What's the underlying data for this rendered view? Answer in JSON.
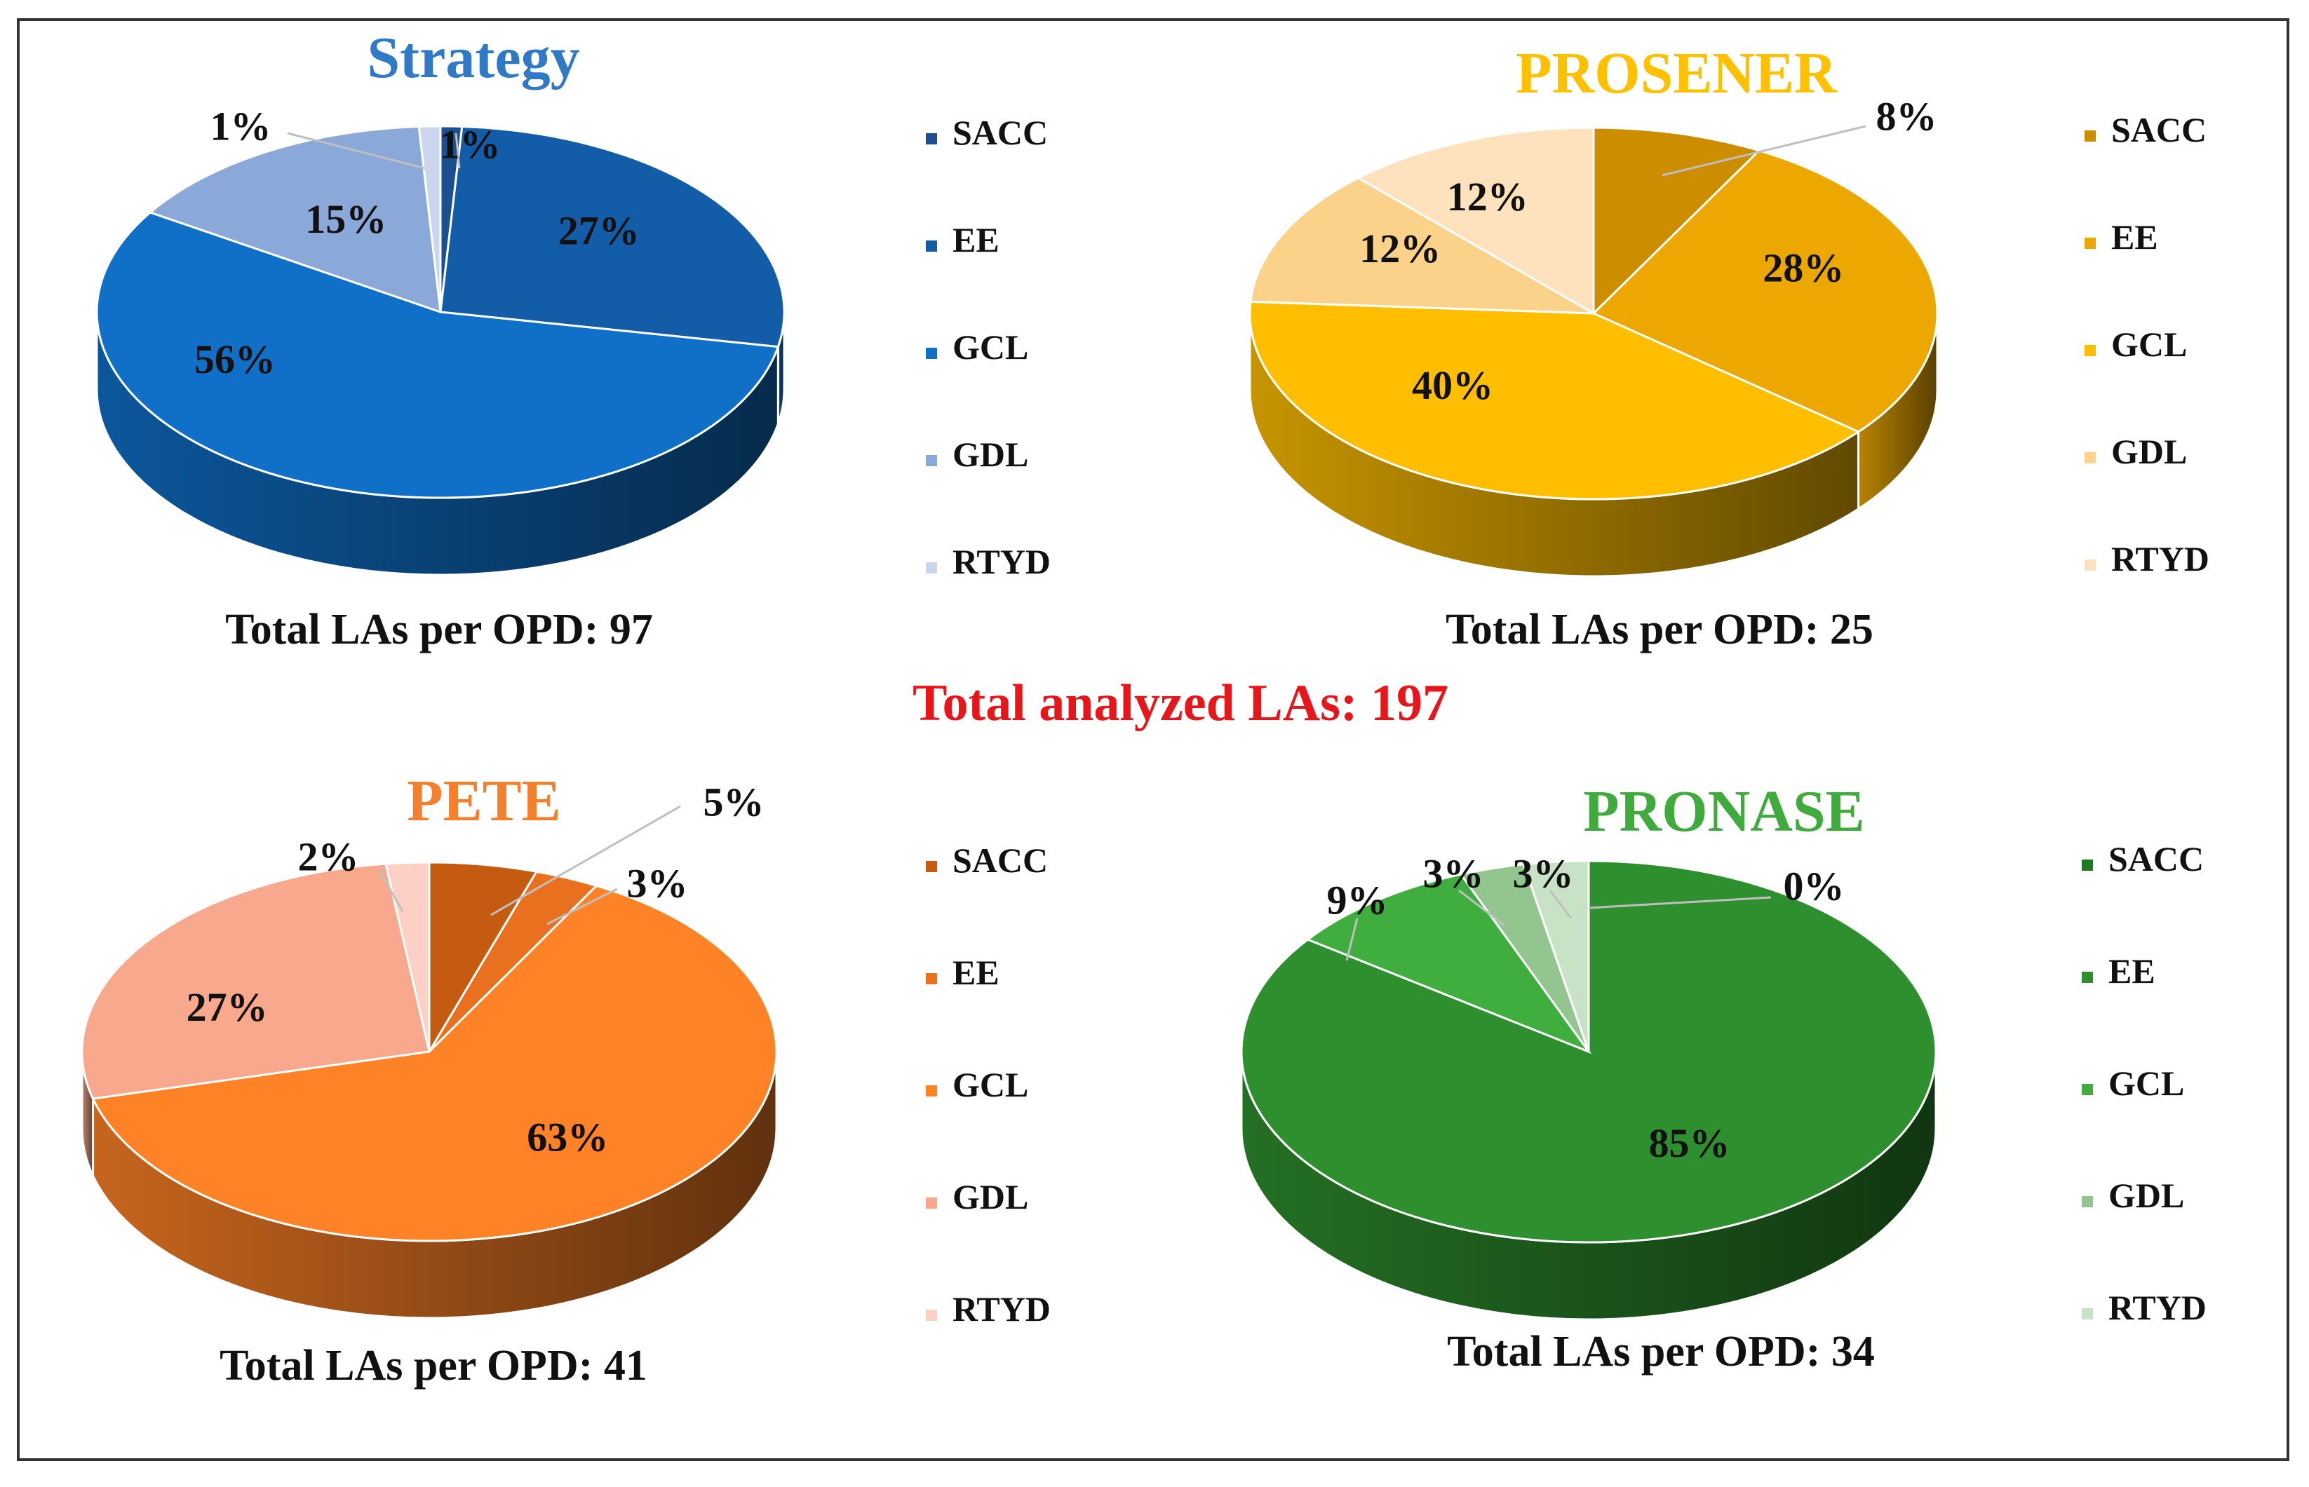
{
  "figure": {
    "total_label": "Total analyzed LAs: 197",
    "total_color": "#e8161b"
  },
  "chart_data": [
    {
      "type": "pie",
      "title": "Strategy",
      "title_color": "#2f79c6",
      "categories": [
        "SACC",
        "EE",
        "GCL",
        "GDL",
        "RTYD"
      ],
      "values": [
        1,
        27,
        56,
        15,
        1
      ],
      "labels": [
        "1%",
        "27%",
        "56%",
        "15%",
        "1%"
      ],
      "colors": [
        "#1b4f8f",
        "#135da8",
        "#1070c8",
        "#8aa8d8",
        "#c9d6ee"
      ],
      "legend_position": "right",
      "footer": "Total LAs per OPD: 97"
    },
    {
      "type": "pie",
      "title": "PROSENER",
      "title_color": "#ffc000",
      "categories": [
        "SACC",
        "EE",
        "GCL",
        "GDL",
        "RTYD"
      ],
      "values": [
        8,
        28,
        40,
        12,
        12
      ],
      "labels": [
        "8%",
        "28%",
        "40%",
        "12%",
        "12%"
      ],
      "colors": [
        "#cc8e00",
        "#eca800",
        "#ffbf00",
        "#fbd28a",
        "#fde2bd"
      ],
      "legend_position": "right",
      "footer": "Total LAs per OPD: 25"
    },
    {
      "type": "pie",
      "title": "PETE",
      "title_color": "#f47f2c",
      "categories": [
        "SACC",
        "EE",
        "GCL",
        "GDL",
        "RTYD"
      ],
      "values": [
        5,
        3,
        63,
        27,
        2
      ],
      "labels": [
        "5%",
        "3%",
        "63%",
        "27%",
        "2%"
      ],
      "colors": [
        "#c55a11",
        "#e8701e",
        "#ff8226",
        "#f8a98d",
        "#fcd0c4"
      ],
      "legend_position": "right",
      "footer": "Total LAs per OPD: 41"
    },
    {
      "type": "pie",
      "title": "PRONASE",
      "title_color": "#3fab3c",
      "categories": [
        "SACC",
        "EE",
        "GCL",
        "GDL",
        "RTYD"
      ],
      "values": [
        0,
        85,
        9,
        3,
        3
      ],
      "labels": [
        "0%",
        "85%",
        "9%",
        "3%",
        "3%"
      ],
      "colors": [
        "#1f7a1f",
        "#2e8f2e",
        "#3fae3f",
        "#93c68f",
        "#c7e2c4"
      ],
      "legend_position": "right",
      "footer": "Total LAs per OPD: 34"
    }
  ]
}
